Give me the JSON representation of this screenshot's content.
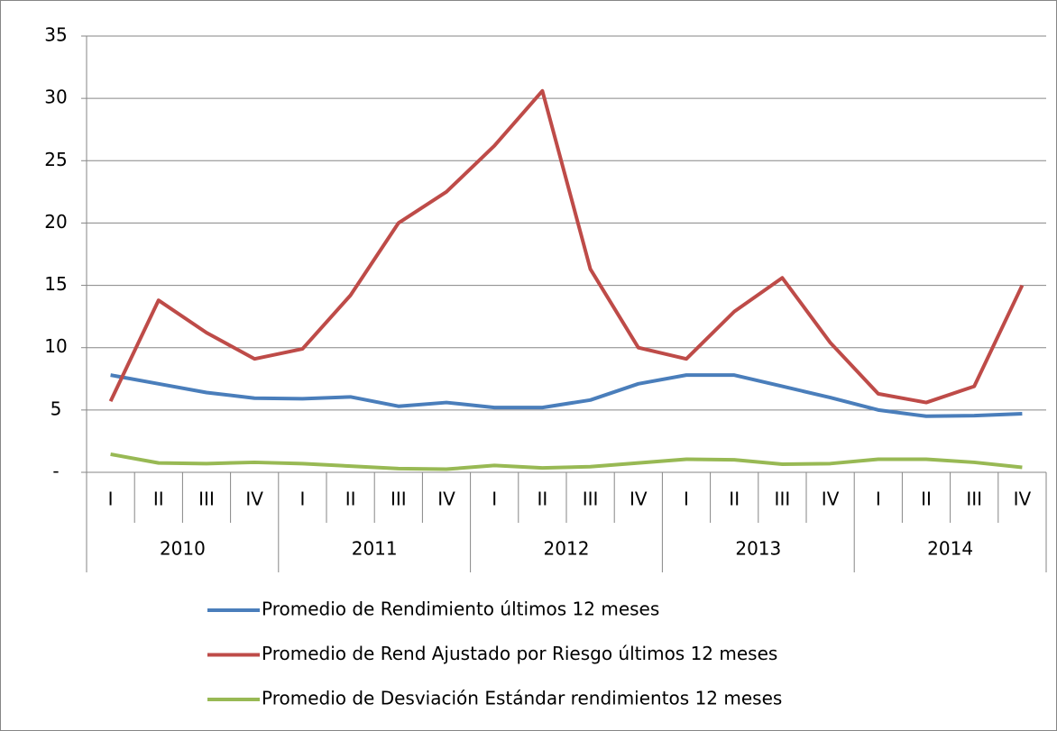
{
  "chart_data": {
    "type": "line",
    "categories": [
      "I",
      "II",
      "III",
      "IV",
      "I",
      "II",
      "III",
      "IV",
      "I",
      "II",
      "III",
      "IV",
      "I",
      "II",
      "III",
      "IV",
      "I",
      "II",
      "III",
      "IV"
    ],
    "groups": [
      "2010",
      "2011",
      "2012",
      "2013",
      "2014"
    ],
    "series": [
      {
        "name": "Promedio de Rendimiento últimos 12 meses",
        "color": "#4a7ebb",
        "values": [
          7.8,
          7.1,
          6.4,
          5.95,
          5.9,
          6.05,
          5.3,
          5.6,
          5.2,
          5.2,
          5.8,
          7.1,
          7.8,
          7.8,
          6.9,
          6.0,
          5.0,
          4.5,
          4.55,
          4.7
        ]
      },
      {
        "name": "Promedio de Rend Ajustado por Riesgo últimos 12 meses",
        "color": "#be4b48",
        "values": [
          5.7,
          13.8,
          11.2,
          9.1,
          9.9,
          14.2,
          20.0,
          22.5,
          26.2,
          30.6,
          16.3,
          10.0,
          9.1,
          12.9,
          15.6,
          10.4,
          6.3,
          5.6,
          6.9,
          15.0
        ]
      },
      {
        "name": "Promedio de Desviación Estándar rendimientos 12 meses",
        "color": "#98b954",
        "values": [
          1.45,
          0.75,
          0.7,
          0.8,
          0.7,
          0.5,
          0.3,
          0.25,
          0.55,
          0.35,
          0.45,
          0.75,
          1.05,
          1.0,
          0.65,
          0.7,
          1.05,
          1.05,
          0.8,
          0.4
        ]
      }
    ],
    "ylim": [
      0,
      35
    ],
    "yticks": [
      {
        "value": 0,
        "label": "-"
      },
      5,
      10,
      15,
      20,
      25,
      30,
      35
    ],
    "grid": true,
    "legend": "bottom"
  }
}
